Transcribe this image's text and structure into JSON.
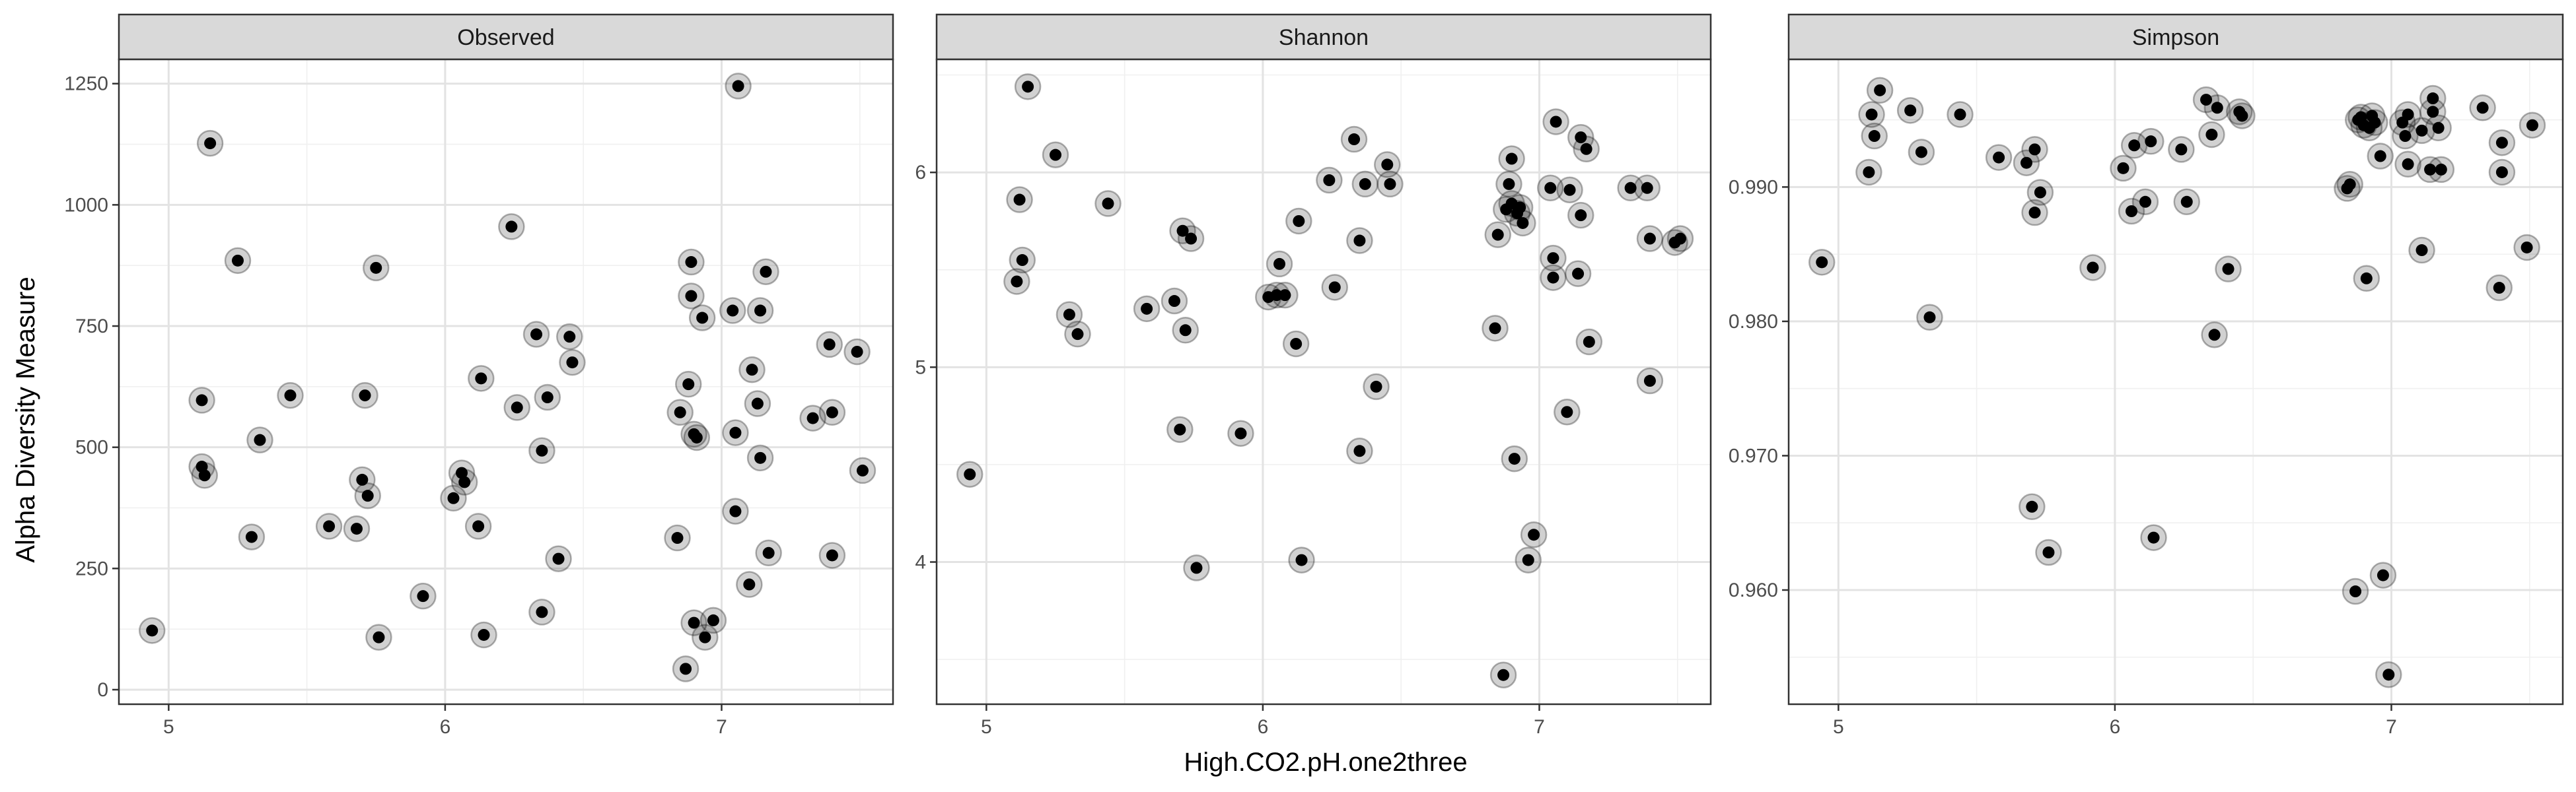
{
  "chart_data": {
    "type": "scatter",
    "xlabel": "High.CO2.pH.one2three",
    "ylabel": "Alpha Diversity Measure",
    "grid": true,
    "panels": [
      {
        "name": "Observed",
        "xlim": [
          4.82,
          7.62
        ],
        "ylim": [
          -30,
          1300
        ],
        "xticks": [
          5,
          6,
          7
        ],
        "xtick_labels": [
          "5",
          "6",
          "7"
        ],
        "yticks": [
          0,
          250,
          500,
          750,
          1000,
          1250
        ],
        "ytick_labels": [
          "0",
          "250",
          "500",
          "750",
          "1000",
          "1250"
        ],
        "points": [
          [
            4.94,
            122
          ],
          [
            5.12,
            460
          ],
          [
            5.13,
            442
          ],
          [
            5.12,
            597
          ],
          [
            5.15,
            1127
          ],
          [
            5.25,
            885
          ],
          [
            5.3,
            315
          ],
          [
            5.33,
            515
          ],
          [
            5.44,
            607
          ],
          [
            5.58,
            337
          ],
          [
            5.68,
            332
          ],
          [
            5.7,
            433
          ],
          [
            5.71,
            607
          ],
          [
            5.72,
            400
          ],
          [
            5.75,
            870
          ],
          [
            5.76,
            108
          ],
          [
            5.92,
            193
          ],
          [
            6.03,
            395
          ],
          [
            6.06,
            447
          ],
          [
            6.07,
            428
          ],
          [
            6.12,
            337
          ],
          [
            6.13,
            642
          ],
          [
            6.14,
            113
          ],
          [
            6.24,
            955
          ],
          [
            6.26,
            582
          ],
          [
            6.33,
            733
          ],
          [
            6.35,
            160
          ],
          [
            6.35,
            493
          ],
          [
            6.37,
            603
          ],
          [
            6.41,
            270
          ],
          [
            6.45,
            728
          ],
          [
            6.46,
            675
          ],
          [
            6.84,
            313
          ],
          [
            6.85,
            572
          ],
          [
            6.87,
            43
          ],
          [
            6.88,
            630
          ],
          [
            6.89,
            882
          ],
          [
            6.89,
            812
          ],
          [
            6.9,
            138
          ],
          [
            6.9,
            527
          ],
          [
            6.91,
            520
          ],
          [
            6.93,
            767
          ],
          [
            6.94,
            108
          ],
          [
            6.97,
            143
          ],
          [
            7.04,
            782
          ],
          [
            7.05,
            368
          ],
          [
            7.05,
            530
          ],
          [
            7.06,
            1245
          ],
          [
            7.1,
            217
          ],
          [
            7.11,
            660
          ],
          [
            7.13,
            590
          ],
          [
            7.14,
            478
          ],
          [
            7.14,
            782
          ],
          [
            7.16,
            862
          ],
          [
            7.17,
            282
          ],
          [
            7.33,
            560
          ],
          [
            7.39,
            712
          ],
          [
            7.4,
            572
          ],
          [
            7.4,
            277
          ],
          [
            7.49,
            697
          ],
          [
            7.51,
            452
          ]
        ]
      },
      {
        "name": "Shannon",
        "xlim": [
          4.82,
          7.62
        ],
        "ylim": [
          3.27,
          6.58
        ],
        "xticks": [
          5,
          6,
          7
        ],
        "xtick_labels": [
          "5",
          "6",
          "7"
        ],
        "yticks": [
          4,
          5,
          6
        ],
        "ytick_labels": [
          "4",
          "5",
          "6"
        ],
        "points": [
          [
            4.94,
            4.45
          ],
          [
            5.11,
            5.44
          ],
          [
            5.12,
            5.86
          ],
          [
            5.13,
            5.55
          ],
          [
            5.15,
            6.44
          ],
          [
            5.25,
            6.09
          ],
          [
            5.3,
            5.27
          ],
          [
            5.33,
            5.17
          ],
          [
            5.44,
            5.84
          ],
          [
            5.58,
            5.3
          ],
          [
            5.68,
            5.34
          ],
          [
            5.7,
            4.68
          ],
          [
            5.71,
            5.7
          ],
          [
            5.72,
            5.19
          ],
          [
            5.74,
            5.66
          ],
          [
            5.76,
            3.97
          ],
          [
            5.92,
            4.66
          ],
          [
            6.02,
            5.36
          ],
          [
            6.05,
            5.37
          ],
          [
            6.06,
            5.53
          ],
          [
            6.08,
            5.37
          ],
          [
            6.12,
            5.12
          ],
          [
            6.13,
            5.75
          ],
          [
            6.14,
            4.01
          ],
          [
            6.24,
            5.96
          ],
          [
            6.26,
            5.41
          ],
          [
            6.33,
            6.17
          ],
          [
            6.35,
            5.65
          ],
          [
            6.35,
            4.57
          ],
          [
            6.37,
            5.94
          ],
          [
            6.41,
            4.9
          ],
          [
            6.45,
            6.04
          ],
          [
            6.46,
            5.94
          ],
          [
            6.84,
            5.2
          ],
          [
            6.85,
            5.68
          ],
          [
            6.87,
            3.42
          ],
          [
            6.88,
            5.81
          ],
          [
            6.89,
            5.94
          ],
          [
            6.9,
            6.07
          ],
          [
            6.9,
            5.84
          ],
          [
            6.91,
            4.53
          ],
          [
            6.92,
            5.79
          ],
          [
            6.93,
            5.82
          ],
          [
            6.94,
            5.74
          ],
          [
            6.96,
            4.01
          ],
          [
            6.98,
            4.14
          ],
          [
            7.04,
            5.92
          ],
          [
            7.05,
            5.46
          ],
          [
            7.05,
            5.56
          ],
          [
            7.06,
            6.26
          ],
          [
            7.1,
            4.77
          ],
          [
            7.11,
            5.91
          ],
          [
            7.14,
            5.48
          ],
          [
            7.15,
            6.18
          ],
          [
            7.15,
            5.78
          ],
          [
            7.17,
            6.12
          ],
          [
            7.18,
            5.13
          ],
          [
            7.33,
            5.92
          ],
          [
            7.39,
            5.92
          ],
          [
            7.4,
            5.66
          ],
          [
            7.4,
            4.93
          ],
          [
            7.49,
            5.64
          ],
          [
            7.51,
            5.66
          ]
        ]
      },
      {
        "name": "Simpson",
        "xlim": [
          4.82,
          7.62
        ],
        "ylim": [
          0.9515,
          0.9995
        ],
        "xticks": [
          5,
          6,
          7
        ],
        "xtick_labels": [
          "5",
          "6",
          "7"
        ],
        "yticks": [
          0.96,
          0.97,
          0.98,
          0.99
        ],
        "ytick_labels": [
          "0.960",
          "0.970",
          "0.980",
          "0.990"
        ],
        "points": [
          [
            4.94,
            0.9844
          ],
          [
            5.11,
            0.9911
          ],
          [
            5.12,
            0.9954
          ],
          [
            5.13,
            0.9938
          ],
          [
            5.15,
            0.9972
          ],
          [
            5.26,
            0.9957
          ],
          [
            5.3,
            0.9926
          ],
          [
            5.33,
            0.9803
          ],
          [
            5.44,
            0.9954
          ],
          [
            5.58,
            0.9922
          ],
          [
            5.68,
            0.9918
          ],
          [
            5.7,
            0.9662
          ],
          [
            5.71,
            0.9928
          ],
          [
            5.71,
            0.9881
          ],
          [
            5.73,
            0.9896
          ],
          [
            5.76,
            0.9628
          ],
          [
            5.92,
            0.984
          ],
          [
            6.03,
            0.9914
          ],
          [
            6.06,
            0.9882
          ],
          [
            6.07,
            0.9931
          ],
          [
            6.11,
            0.9889
          ],
          [
            6.13,
            0.9934
          ],
          [
            6.14,
            0.9639
          ],
          [
            6.24,
            0.9928
          ],
          [
            6.26,
            0.9889
          ],
          [
            6.33,
            0.9965
          ],
          [
            6.35,
            0.9939
          ],
          [
            6.36,
            0.979
          ],
          [
            6.37,
            0.9959
          ],
          [
            6.41,
            0.9839
          ],
          [
            6.45,
            0.9956
          ],
          [
            6.46,
            0.9953
          ],
          [
            6.84,
            0.9899
          ],
          [
            6.85,
            0.9902
          ],
          [
            6.87,
            0.9599
          ],
          [
            6.88,
            0.995
          ],
          [
            6.89,
            0.9952
          ],
          [
            6.9,
            0.9946
          ],
          [
            6.91,
            0.9832
          ],
          [
            6.92,
            0.9944
          ],
          [
            6.93,
            0.9953
          ],
          [
            6.94,
            0.9948
          ],
          [
            6.96,
            0.9923
          ],
          [
            6.97,
            0.9611
          ],
          [
            6.99,
            0.9537
          ],
          [
            7.04,
            0.9948
          ],
          [
            7.05,
            0.9938
          ],
          [
            7.06,
            0.9917
          ],
          [
            7.06,
            0.9954
          ],
          [
            7.11,
            0.9853
          ],
          [
            7.11,
            0.9942
          ],
          [
            7.14,
            0.9913
          ],
          [
            7.15,
            0.9966
          ],
          [
            7.15,
            0.9956
          ],
          [
            7.17,
            0.9944
          ],
          [
            7.18,
            0.9913
          ],
          [
            7.33,
            0.9959
          ],
          [
            7.39,
            0.9825
          ],
          [
            7.4,
            0.9911
          ],
          [
            7.4,
            0.9933
          ],
          [
            7.49,
            0.9855
          ],
          [
            7.51,
            0.9946
          ]
        ]
      }
    ]
  }
}
